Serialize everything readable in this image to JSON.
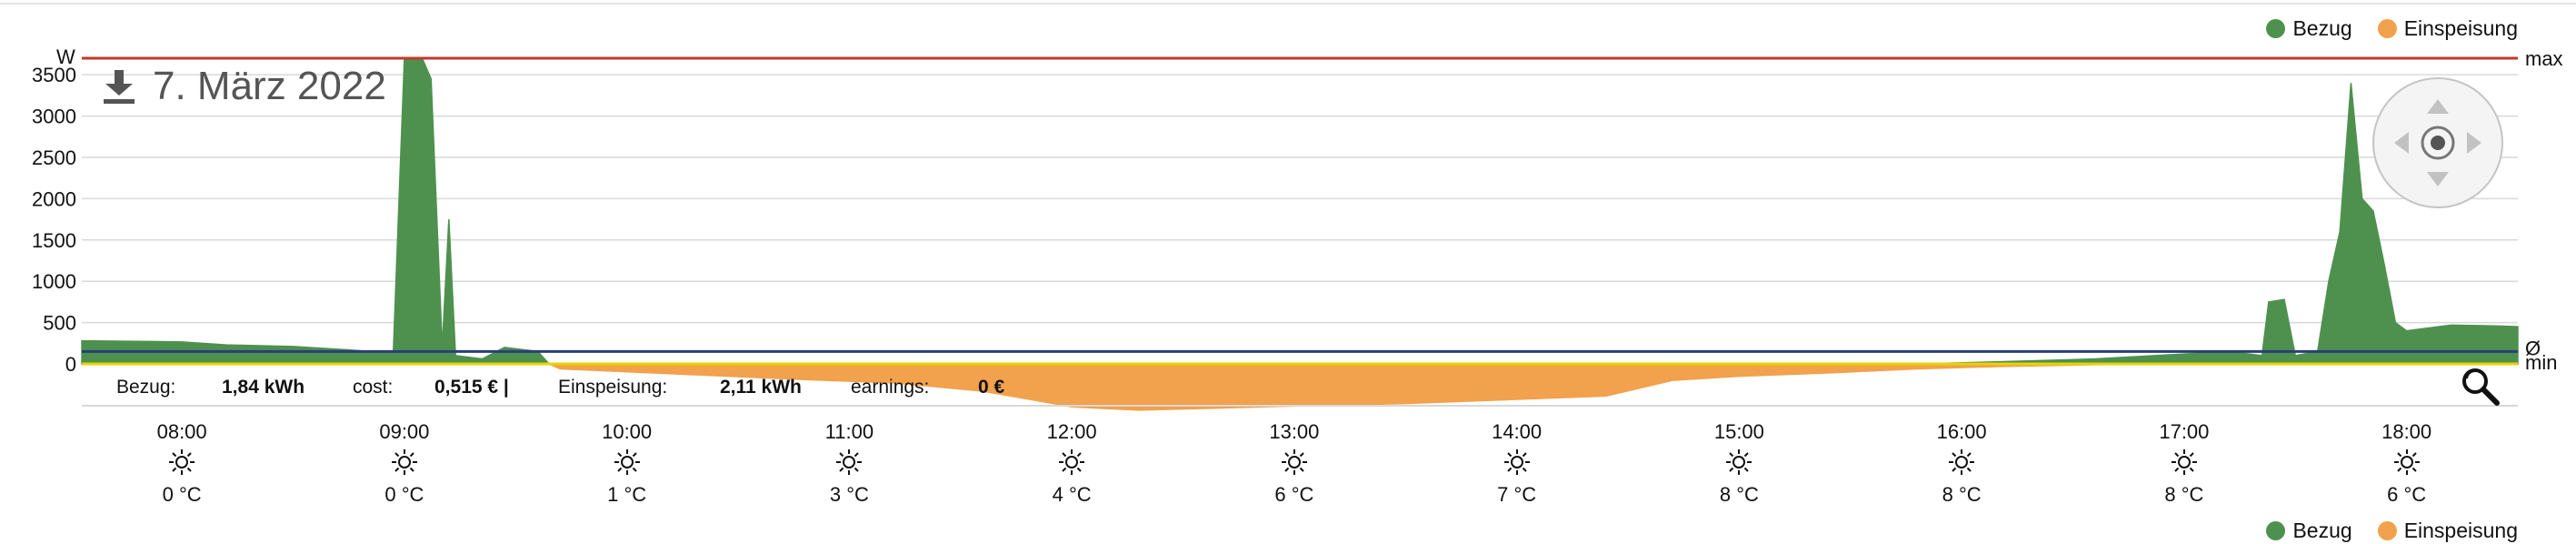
{
  "header": {
    "date_title": "7. März 2022"
  },
  "legend": [
    {
      "label": "Bezug",
      "color": "#4e914f"
    },
    {
      "label": "Einspeisung",
      "color": "#f2a14c"
    }
  ],
  "stats": {
    "bezug_label": "Bezug:",
    "bezug_value": "1,84 kWh",
    "cost_label": "cost:",
    "cost_value": "0,515 € |",
    "einspeisung_label": "Einspeisung:",
    "einspeisung_value": "2,11 kWh",
    "earnings_label": "earnings:",
    "earnings_value": "0 €"
  },
  "weather": [
    {
      "time": "08:00",
      "temp": "0 °C"
    },
    {
      "time": "09:00",
      "temp": "0 °C"
    },
    {
      "time": "10:00",
      "temp": "1 °C"
    },
    {
      "time": "11:00",
      "temp": "3 °C"
    },
    {
      "time": "12:00",
      "temp": "4 °C"
    },
    {
      "time": "13:00",
      "temp": "6 °C"
    },
    {
      "time": "14:00",
      "temp": "7 °C"
    },
    {
      "time": "15:00",
      "temp": "8 °C"
    },
    {
      "time": "16:00",
      "temp": "8 °C"
    },
    {
      "time": "17:00",
      "temp": "8 °C"
    },
    {
      "time": "18:00",
      "temp": "6 °C"
    }
  ],
  "icons": {
    "download": "download-icon",
    "zoom": "zoom-icon",
    "weather": "sun-icon",
    "pan": "pan-navigator-icon"
  },
  "chart_data": {
    "type": "area",
    "y_unit_label": "W",
    "yticks": [
      0,
      500,
      1000,
      1500,
      2000,
      2500,
      3000,
      3500
    ],
    "ylim": [
      -500,
      3780
    ],
    "xlim": [
      7.55,
      18.5
    ],
    "grid": true,
    "reference_lines": [
      {
        "label": "max",
        "value": 3700,
        "color": "#c0392b"
      },
      {
        "label": "Ø",
        "value": 150,
        "color": "#2c3e7a"
      },
      {
        "label": "min",
        "value": 0,
        "color": "#e6d400"
      }
    ],
    "series": [
      {
        "name": "Bezug",
        "color": "#4e914f",
        "points": [
          [
            7.55,
            280
          ],
          [
            7.9,
            270
          ],
          [
            8.0,
            265
          ],
          [
            8.2,
            230
          ],
          [
            8.5,
            210
          ],
          [
            8.75,
            170
          ],
          [
            8.95,
            130
          ],
          [
            9.0,
            3700
          ],
          [
            9.08,
            3700
          ],
          [
            9.12,
            3450
          ],
          [
            9.17,
            200
          ],
          [
            9.2,
            1750
          ],
          [
            9.23,
            100
          ],
          [
            9.35,
            60
          ],
          [
            9.45,
            200
          ],
          [
            9.6,
            150
          ],
          [
            9.65,
            0
          ],
          [
            15.8,
            0
          ],
          [
            16.1,
            20
          ],
          [
            16.6,
            60
          ],
          [
            17.0,
            120
          ],
          [
            17.2,
            150
          ],
          [
            17.35,
            100
          ],
          [
            17.38,
            750
          ],
          [
            17.45,
            780
          ],
          [
            17.5,
            100
          ],
          [
            17.6,
            150
          ],
          [
            17.65,
            1000
          ],
          [
            17.7,
            1600
          ],
          [
            17.75,
            3400
          ],
          [
            17.8,
            2000
          ],
          [
            17.85,
            1850
          ],
          [
            17.9,
            1200
          ],
          [
            17.95,
            500
          ],
          [
            18.0,
            400
          ],
          [
            18.2,
            470
          ],
          [
            18.4,
            460
          ],
          [
            18.5,
            450
          ]
        ]
      },
      {
        "name": "Einspeisung",
        "color": "#f2a14c",
        "points": [
          [
            9.65,
            0
          ],
          [
            9.7,
            -60
          ],
          [
            10.2,
            -120
          ],
          [
            10.8,
            -190
          ],
          [
            11.2,
            -230
          ],
          [
            11.6,
            -330
          ],
          [
            12.0,
            -520
          ],
          [
            12.3,
            -560
          ],
          [
            12.6,
            -540
          ],
          [
            13.0,
            -510
          ],
          [
            13.5,
            -480
          ],
          [
            14.0,
            -430
          ],
          [
            14.4,
            -390
          ],
          [
            14.7,
            -200
          ],
          [
            15.0,
            -150
          ],
          [
            15.4,
            -110
          ],
          [
            15.8,
            -60
          ],
          [
            16.2,
            -30
          ],
          [
            16.6,
            -10
          ],
          [
            17.0,
            0
          ]
        ]
      }
    ]
  }
}
